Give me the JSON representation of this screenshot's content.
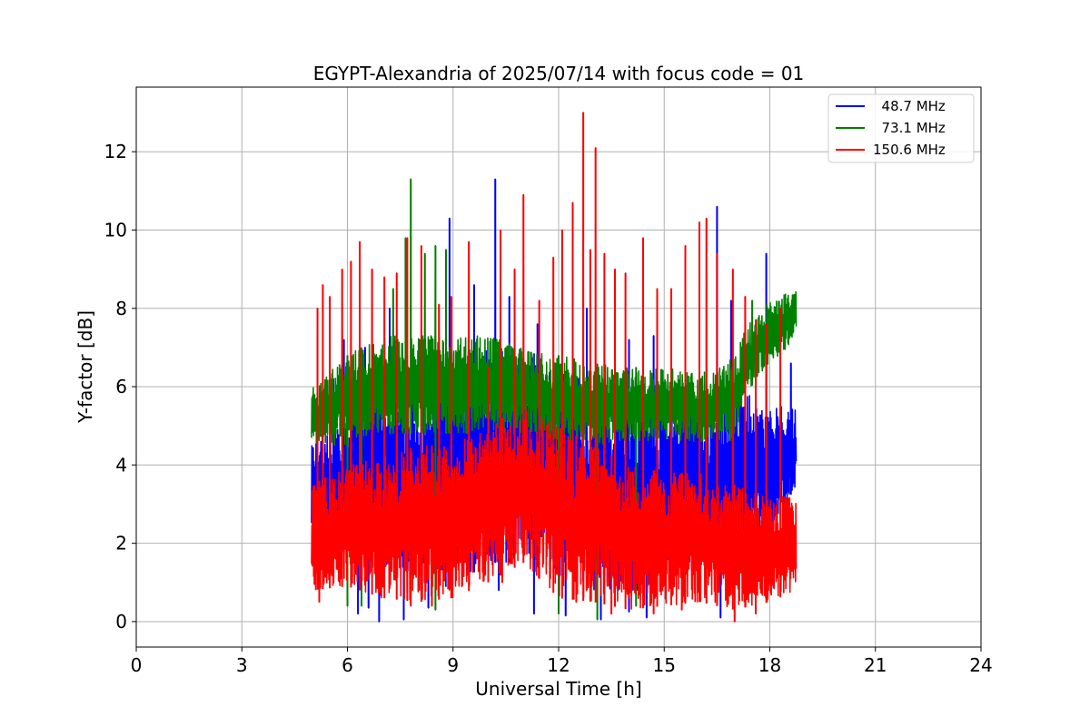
{
  "chart_data": {
    "type": "line",
    "title": "EGYPT-Alexandria of 2025/07/14 with focus code = 01",
    "xlabel": "Universal Time [h]",
    "ylabel": "Y-factor [dB]",
    "xlim": [
      0,
      24
    ],
    "ylim": [
      -0.65,
      13.65
    ],
    "xticks": [
      0,
      3,
      6,
      9,
      12,
      15,
      18,
      21,
      24
    ],
    "yticks": [
      0,
      2,
      4,
      6,
      8,
      10,
      12
    ],
    "grid": true,
    "legend_position": "top-right",
    "series": [
      {
        "name": "  48.7 MHz",
        "color": "#0000ff",
        "x_range": [
          4.98,
          18.75
        ],
        "band_x": [
          5.0,
          6.0,
          7.0,
          8.0,
          9.0,
          10.0,
          11.0,
          12.0,
          13.0,
          14.0,
          15.0,
          16.0,
          17.0,
          18.0,
          18.75
        ],
        "band_low": [
          2.5,
          1.8,
          1.2,
          0.9,
          0.9,
          1.5,
          1.5,
          1.2,
          0.8,
          0.7,
          1.0,
          1.2,
          1.5,
          2.2,
          3.5
        ],
        "band_high": [
          4.5,
          5.5,
          6.0,
          6.0,
          6.5,
          7.0,
          7.0,
          6.5,
          6.0,
          5.5,
          5.5,
          5.5,
          6.0,
          5.5,
          5.5
        ],
        "spikes": [
          [
            5.6,
            6.2
          ],
          [
            5.9,
            7.2
          ],
          [
            6.5,
            7.0
          ],
          [
            7.2,
            8.0
          ],
          [
            8.1,
            6.5
          ],
          [
            8.9,
            10.3
          ],
          [
            9.6,
            8.6
          ],
          [
            10.2,
            11.3
          ],
          [
            10.6,
            8.3
          ],
          [
            11.4,
            7.6
          ],
          [
            12.8,
            8.0
          ],
          [
            14.0,
            7.2
          ],
          [
            14.7,
            7.3
          ],
          [
            15.6,
            7.3
          ],
          [
            16.5,
            10.6
          ],
          [
            16.9,
            8.2
          ],
          [
            17.9,
            9.4
          ],
          [
            18.6,
            6.6
          ]
        ],
        "dips": [
          [
            6.3,
            0.2
          ],
          [
            6.6,
            0.35
          ],
          [
            6.9,
            0.0
          ],
          [
            7.6,
            0.05
          ],
          [
            8.3,
            0.35
          ],
          [
            10.3,
            0.8
          ],
          [
            11.3,
            0.2
          ],
          [
            12.2,
            0.15
          ],
          [
            13.2,
            0.05
          ],
          [
            14.0,
            0.25
          ],
          [
            14.5,
            0.1
          ],
          [
            16.6,
            0.1
          ]
        ]
      },
      {
        "name": "  73.1 MHz",
        "color": "#008000",
        "x_range": [
          4.98,
          18.75
        ],
        "band_x": [
          5.0,
          6.0,
          7.0,
          8.0,
          9.0,
          10.0,
          11.0,
          12.0,
          13.0,
          14.0,
          15.0,
          16.0,
          17.0,
          17.3,
          18.0,
          18.75
        ],
        "band_low": [
          4.5,
          4.5,
          4.8,
          4.8,
          4.8,
          4.8,
          4.8,
          4.5,
          4.5,
          4.6,
          4.6,
          4.6,
          4.6,
          5.8,
          6.6,
          7.2
        ],
        "band_high": [
          6.0,
          6.8,
          7.3,
          7.3,
          7.3,
          7.3,
          7.0,
          6.8,
          6.6,
          6.5,
          6.5,
          6.3,
          6.8,
          7.5,
          8.2,
          8.5
        ],
        "spikes": [
          [
            7.3,
            8.5
          ],
          [
            7.65,
            9.8
          ],
          [
            7.8,
            11.3
          ],
          [
            8.2,
            9.4
          ],
          [
            8.5,
            9.6
          ],
          [
            8.8,
            9.5
          ],
          [
            17.5,
            8.2
          ]
        ],
        "dips": [
          [
            6.0,
            0.4
          ],
          [
            6.4,
            0.4
          ],
          [
            8.5,
            0.3
          ],
          [
            12.0,
            0.2
          ],
          [
            13.1,
            0.05
          ],
          [
            14.2,
            0.4
          ]
        ]
      },
      {
        "name": "150.6 MHz",
        "color": "#ff0000",
        "x_range": [
          4.98,
          18.75
        ],
        "band_x": [
          5.0,
          6.0,
          7.0,
          8.0,
          9.0,
          10.0,
          11.0,
          12.0,
          13.0,
          14.0,
          15.0,
          16.0,
          17.0,
          18.0,
          18.75
        ],
        "band_low": [
          0.8,
          0.9,
          0.6,
          0.5,
          0.6,
          1.0,
          1.5,
          0.6,
          0.5,
          0.3,
          0.4,
          0.5,
          0.3,
          0.5,
          0.8
        ],
        "band_high": [
          3.5,
          4.0,
          4.2,
          4.5,
          4.5,
          5.0,
          5.5,
          5.0,
          4.5,
          4.0,
          3.8,
          3.8,
          3.5,
          3.2,
          3.3
        ],
        "spikes": [
          [
            5.15,
            8.0
          ],
          [
            5.3,
            8.6
          ],
          [
            5.5,
            8.3
          ],
          [
            5.85,
            9.0
          ],
          [
            6.1,
            9.2
          ],
          [
            6.35,
            9.7
          ],
          [
            6.7,
            9.0
          ],
          [
            7.05,
            8.8
          ],
          [
            7.4,
            8.9
          ],
          [
            7.7,
            9.8
          ],
          [
            8.1,
            9.6
          ],
          [
            8.6,
            8.1
          ],
          [
            8.95,
            8.3
          ],
          [
            9.45,
            9.7
          ],
          [
            10.0,
            6.5
          ],
          [
            10.35,
            10.0
          ],
          [
            10.75,
            9.0
          ],
          [
            11.0,
            10.9
          ],
          [
            11.45,
            8.2
          ],
          [
            11.85,
            9.3
          ],
          [
            12.1,
            10.0
          ],
          [
            12.4,
            10.7
          ],
          [
            12.7,
            13.0
          ],
          [
            12.9,
            9.5
          ],
          [
            13.05,
            12.1
          ],
          [
            13.3,
            9.4
          ],
          [
            13.6,
            9.0
          ],
          [
            13.9,
            8.9
          ],
          [
            14.4,
            9.8
          ],
          [
            14.8,
            8.5
          ],
          [
            15.2,
            8.5
          ],
          [
            15.6,
            9.6
          ],
          [
            16.0,
            10.2
          ],
          [
            16.2,
            10.3
          ],
          [
            16.5,
            9.4
          ],
          [
            16.95,
            9.0
          ],
          [
            17.3,
            8.3
          ],
          [
            17.6,
            7.7
          ],
          [
            17.9,
            7.6
          ],
          [
            18.3,
            8.0
          ]
        ],
        "dips": [
          [
            5.2,
            0.5
          ],
          [
            7.8,
            0.4
          ],
          [
            8.4,
            0.4
          ],
          [
            10.4,
            1.0
          ],
          [
            12.5,
            0.5
          ],
          [
            13.5,
            0.2
          ],
          [
            14.7,
            0.2
          ],
          [
            15.5,
            0.3
          ],
          [
            17.0,
            0.0
          ],
          [
            17.6,
            0.2
          ]
        ]
      }
    ]
  }
}
